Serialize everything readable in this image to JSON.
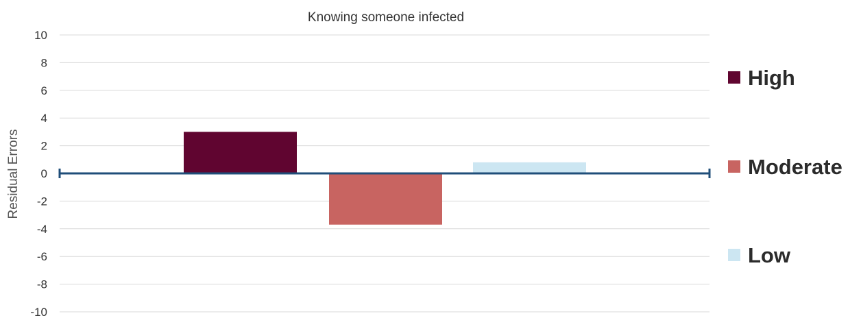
{
  "chart_data": {
    "type": "bar",
    "title": "Knowing someone infected",
    "xlabel": "",
    "ylabel": "Residual Errors",
    "ylim": [
      -10,
      10
    ],
    "yticks": [
      10,
      8,
      6,
      4,
      2,
      0,
      -2,
      -4,
      -6,
      -8,
      -10
    ],
    "grid": true,
    "legend_position": "right",
    "series": [
      {
        "name": "High",
        "values": [
          3.0
        ],
        "color": "#600530"
      },
      {
        "name": "Moderate",
        "values": [
          -3.7
        ],
        "color": "#c86461"
      },
      {
        "name": "Low",
        "values": [
          0.8
        ],
        "color": "#cce6f2"
      }
    ],
    "zero_line_color": "#1f4e79",
    "gridline_color": "#d9d9d9"
  }
}
